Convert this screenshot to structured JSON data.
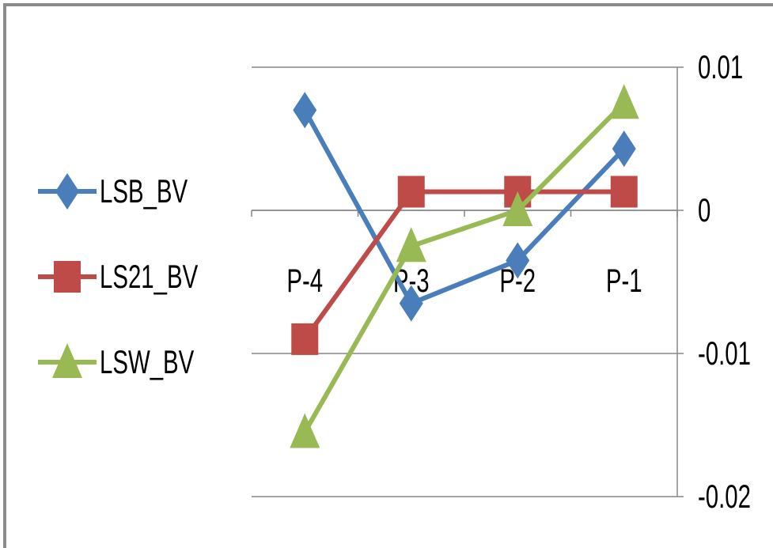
{
  "chart_data": {
    "type": "line",
    "categories": [
      "P-4",
      "P-3",
      "P-2",
      "P-1"
    ],
    "series": [
      {
        "name": "LSB_BV",
        "values": [
          0.007,
          -0.0065,
          -0.0035,
          0.0043
        ],
        "color": "#4a7ebb",
        "marker": "diamond"
      },
      {
        "name": "LS21_BV",
        "values": [
          -0.009,
          0.0013,
          0.0013,
          0.0013
        ],
        "color": "#be4b48",
        "marker": "square"
      },
      {
        "name": "LSW_BV",
        "values": [
          -0.0155,
          -0.0025,
          0.0,
          0.0075
        ],
        "color": "#98b954",
        "marker": "triangle"
      }
    ],
    "ylim": [
      -0.02,
      0.01
    ],
    "yticks": [
      0.01,
      0,
      -0.01,
      -0.02
    ],
    "ytick_labels": [
      "0.01",
      "0",
      "-0.01",
      "-0.02"
    ],
    "y_axis_side": "right",
    "grid": true,
    "legend_position": "left"
  }
}
